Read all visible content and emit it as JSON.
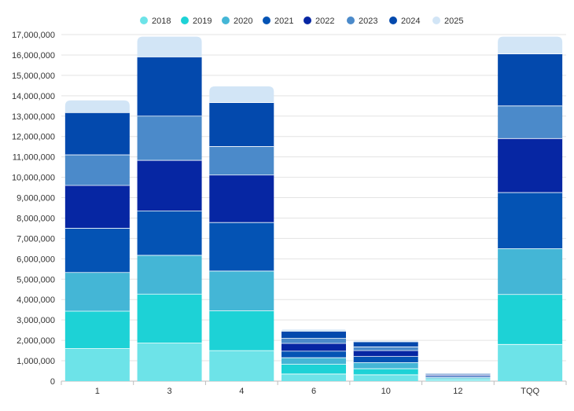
{
  "chart_data": {
    "type": "bar",
    "stacked": true,
    "categories": [
      "1",
      "3",
      "4",
      "6",
      "10",
      "12",
      "TQQ"
    ],
    "series": [
      {
        "name": "2018",
        "color": "#6de3e8",
        "values": [
          1600000,
          1870000,
          1500000,
          350000,
          310000,
          60000,
          1800000
        ]
      },
      {
        "name": "2019",
        "color": "#1dd2d6",
        "values": [
          1830000,
          2400000,
          1950000,
          480000,
          300000,
          60000,
          2450000
        ]
      },
      {
        "name": "2020",
        "color": "#44b6d6",
        "values": [
          1900000,
          1900000,
          1950000,
          320000,
          300000,
          60000,
          2250000
        ]
      },
      {
        "name": "2021",
        "color": "#0453b4",
        "values": [
          2170000,
          2180000,
          2380000,
          320000,
          300000,
          60000,
          2750000
        ]
      },
      {
        "name": "2022",
        "color": "#0626a3",
        "values": [
          2100000,
          2480000,
          2330000,
          380000,
          290000,
          60000,
          2650000
        ]
      },
      {
        "name": "2023",
        "color": "#4b8aca",
        "values": [
          1500000,
          2170000,
          1400000,
          250000,
          180000,
          50000,
          1600000
        ]
      },
      {
        "name": "2024",
        "color": "#0349ad",
        "values": [
          2070000,
          2900000,
          2150000,
          350000,
          250000,
          40000,
          2550000
        ]
      },
      {
        "name": "2025",
        "color": "#d2e5f6",
        "values": [
          600000,
          1000000,
          800000,
          80000,
          50000,
          20000,
          850000
        ]
      }
    ],
    "yticks": [
      "0",
      "1,000,000",
      "2,000,000",
      "3,000,000",
      "4,000,000",
      "5,000,000",
      "6,000,000",
      "7,000,000",
      "8,000,000",
      "9,000,000",
      "10,000,000",
      "11,000,000",
      "12,000,000",
      "13,000,000",
      "14,000,000",
      "15,000,000",
      "16,000,000",
      "17,000,000"
    ],
    "ylim": [
      0,
      17000000
    ],
    "title": "",
    "xlabel": "",
    "ylabel": "",
    "legend_position": "top-center",
    "grid": true,
    "grid_color": "#e3e3e3"
  }
}
